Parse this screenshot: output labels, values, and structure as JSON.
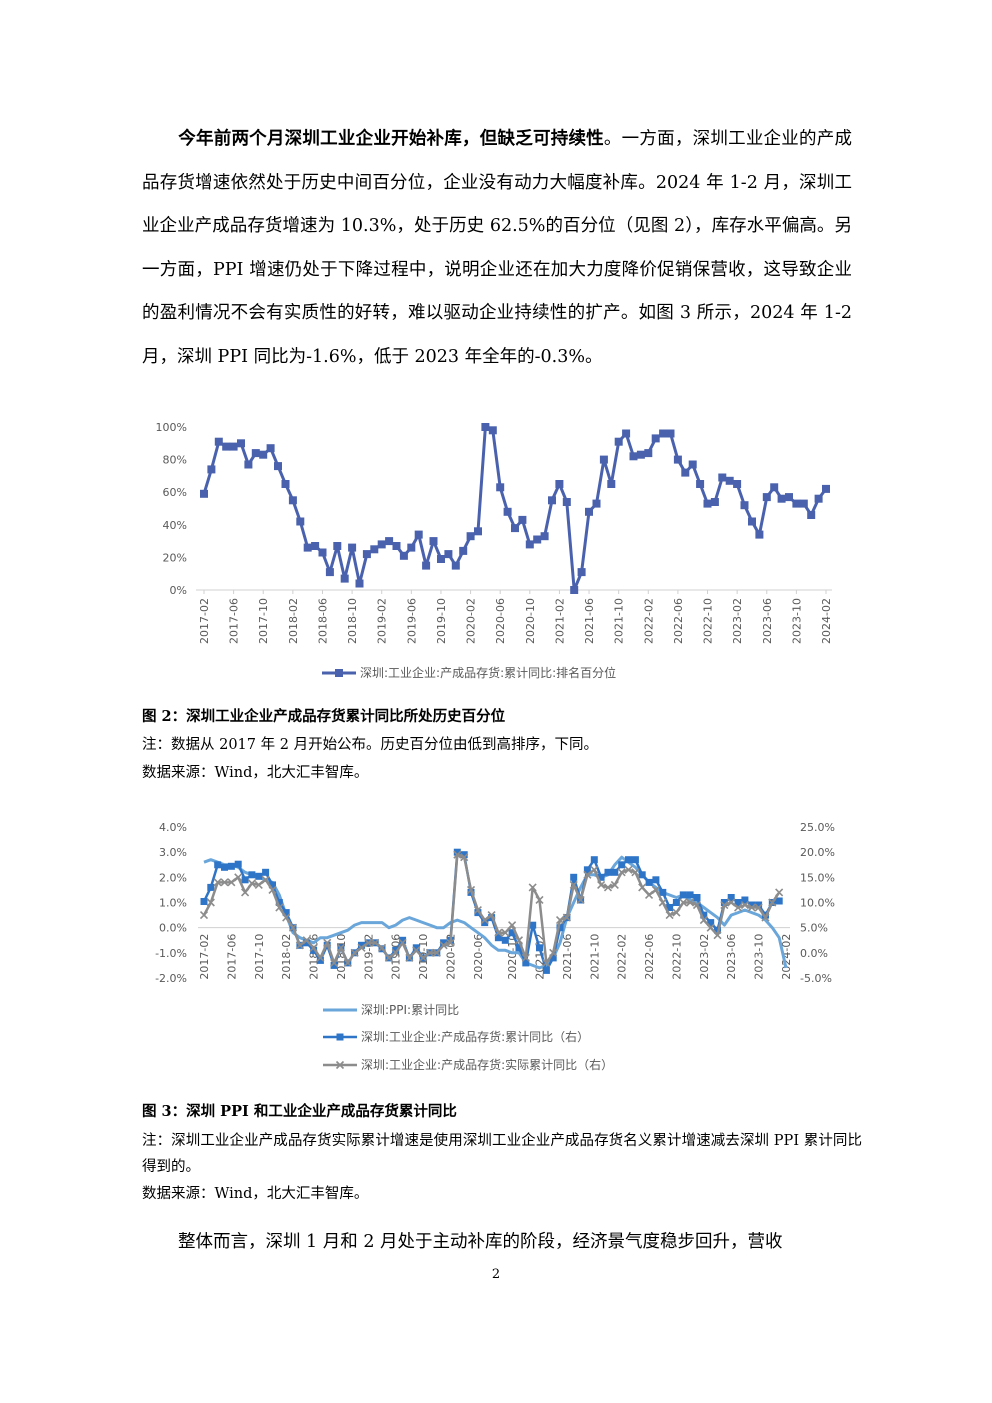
{
  "paragraph1": {
    "lead_bold": "今年前两个月深圳工业企业开始补库，但缺乏可持续性",
    "rest": "。一方面，深圳工业企业的产成品存货增速依然处于历史中间百分位，企业没有动力大幅度补库。2024 年 1-2 月，深圳工业企业产成品存货增速为 10.3%，处于历史 62.5%的百分位（见图 2），库存水平偏高。另一方面，PPI 增速仍处于下降过程中，说明企业还在加大力度降价促销保营收，这导致企业的盈利情况不会有实质性的好转，难以驱动企业持续性的扩产。如图 3 所示，2024 年 1-2 月，深圳 PPI 同比为-1.6%，低于 2023 年全年的-0.3%。"
  },
  "figure2": {
    "caption": "图 2：深圳工业企业产成品存货累计同比所处历史百分位",
    "note": "注：数据从 2017 年 2 月开始公布。历史百分位由低到高排序，下同。",
    "source": "数据来源：Wind，北大汇丰智库。"
  },
  "figure3": {
    "caption": "图 3：深圳 PPI 和工业企业产成品存货累计同比",
    "note": "注：深圳工业企业产成品存货实际累计增速是使用深圳工业企业产成品存货名义累计增速减去深圳 PPI 累计同比得到的。",
    "source": "数据来源：Wind，北大汇丰智库。"
  },
  "paragraph2": "整体而言，深圳 1 月和 2 月处于主动补库的阶段，经济景气度稳步回升，营收",
  "page_number": "2",
  "chart_data": [
    {
      "type": "line",
      "x_tick_labels": [
        "2017-02",
        "2017-06",
        "2017-10",
        "2018-02",
        "2018-06",
        "2018-10",
        "2019-02",
        "2019-06",
        "2019-10",
        "2020-02",
        "2020-06",
        "2020-10",
        "2021-02",
        "2021-06",
        "2021-10",
        "2022-02",
        "2022-06",
        "2022-10",
        "2023-02",
        "2023-06",
        "2023-10",
        "2024-02"
      ],
      "y_tick_labels": [
        "0%",
        "20%",
        "40%",
        "60%",
        "80%",
        "100%"
      ],
      "ylim": [
        0,
        100
      ],
      "grid": false,
      "legend_position": "bottom",
      "colors": {
        "series": "#4a62ad"
      },
      "series": [
        {
          "name": "深圳:工业企业:产成品存货:累计同比:排名百分位",
          "values": [
            59,
            74,
            91,
            88,
            88,
            90,
            77,
            84,
            83,
            87,
            76,
            65,
            55,
            42,
            26,
            27,
            23,
            11,
            27,
            7,
            26,
            4,
            22,
            25,
            28,
            30,
            27,
            21,
            26,
            34,
            15,
            30,
            19,
            22,
            15,
            24,
            33,
            36,
            100,
            98,
            63,
            48,
            38,
            43,
            28,
            31,
            33,
            55,
            65,
            54,
            0,
            11,
            48,
            53,
            80,
            65,
            91,
            96,
            82,
            83,
            84,
            93,
            96,
            96,
            80,
            72,
            77,
            65,
            53,
            54,
            69,
            67,
            65,
            52,
            42,
            34,
            57,
            63,
            56,
            57,
            53,
            53,
            46,
            56,
            62
          ]
        }
      ]
    },
    {
      "type": "line",
      "x_tick_labels": [
        "2017-02",
        "2017-06",
        "2017-10",
        "2018-02",
        "2018-06",
        "2018-10",
        "2019-02",
        "2019-06",
        "2019-10",
        "2020-02",
        "2020-06",
        "2020-10",
        "2021-02",
        "2021-06",
        "2021-10",
        "2022-02",
        "2022-06",
        "2022-10",
        "2023-02",
        "2023-06",
        "2023-10",
        "2024-02"
      ],
      "y_left_tick_labels": [
        "-2.0%",
        "-1.0%",
        "0.0%",
        "1.0%",
        "2.0%",
        "3.0%",
        "4.0%"
      ],
      "y_right_tick_labels": [
        "-5.0%",
        "0.0%",
        "5.0%",
        "10.0%",
        "15.0%",
        "20.0%",
        "25.0%"
      ],
      "ylim_left": [
        -2,
        4
      ],
      "ylim_right": [
        -5,
        25
      ],
      "grid": false,
      "legend_position": "bottom",
      "colors": {
        "ppi": "#6aa6d9",
        "nominal": "#2e75c8",
        "real": "#8c8c8c"
      },
      "series": [
        {
          "name": "深圳:PPI:累计同比",
          "axis": "left",
          "values": [
            2.6,
            2.7,
            2.6,
            2.5,
            2.5,
            2.4,
            2.2,
            2.1,
            2.0,
            1.9,
            1.8,
            1.3,
            0.5,
            -0.2,
            -0.4,
            -0.5,
            -0.6,
            -0.4,
            -0.4,
            -0.3,
            -0.2,
            -0.1,
            0.1,
            0.2,
            0.2,
            0.2,
            0.2,
            0.0,
            0.1,
            0.3,
            0.4,
            0.3,
            0.2,
            0.1,
            0.0,
            0.0,
            0.2,
            0.3,
            0.2,
            0.0,
            -0.2,
            -0.4,
            -0.7,
            -0.9,
            -0.9,
            -1.0,
            -1.0,
            -1.4,
            -1.5,
            -1.6,
            -1.5,
            -1.2,
            -0.6,
            0.4,
            1.0,
            1.6,
            2.1,
            2.1,
            2.0,
            2.1,
            2.5,
            2.8,
            2.6,
            2.4,
            2.1,
            1.8,
            1.6,
            1.4,
            1.3,
            1.2,
            1.3,
            1.1,
            1.0,
            0.8,
            0.6,
            0.4,
            0.1,
            0.5,
            0.6,
            0.7,
            0.6,
            0.5,
            0.3,
            0.0,
            -0.4,
            -1.6
          ]
        },
        {
          "name": "深圳:工业企业:产成品存货:累计同比（右）",
          "axis": "right",
          "values": [
            10.2,
            13.0,
            17.5,
            17.0,
            17.2,
            17.6,
            14.5,
            15.5,
            15.2,
            16.0,
            13.5,
            10.0,
            8.0,
            5.0,
            1.5,
            2.0,
            0.5,
            -1.5,
            1.5,
            -2.5,
            1.0,
            -2.0,
            0.0,
            1.5,
            2.0,
            2.0,
            0.8,
            -1.0,
            0.5,
            2.5,
            -1.0,
            1.0,
            -1.0,
            0.0,
            0.0,
            2.0,
            2.5,
            20.0,
            19.5,
            12.0,
            8.0,
            6.0,
            7.0,
            3.0,
            2.5,
            4.0,
            1.0,
            -2.0,
            5.5,
            1.0,
            -3.5,
            -1.0,
            5.0,
            7.0,
            15.0,
            10.5,
            16.5,
            18.5,
            15.0,
            16.0,
            16.0,
            17.5,
            18.5,
            18.5,
            15.5,
            14.0,
            14.5,
            12.0,
            9.0,
            10.0,
            11.5,
            11.5,
            11.0,
            7.5,
            6.0,
            4.5,
            10.0,
            11.0,
            10.0,
            10.5,
            9.5,
            9.5,
            7.5,
            10.0,
            10.3
          ]
        },
        {
          "name": "深圳:工业企业:产成品存货:实际累计同比（右）",
          "axis": "right",
          "values": [
            7.5,
            10.0,
            14.0,
            14.0,
            14.0,
            15.0,
            12.0,
            13.8,
            13.5,
            14.5,
            12.5,
            9.0,
            7.0,
            5.0,
            1.5,
            2.5,
            1.0,
            -1.0,
            2.0,
            -2.0,
            1.0,
            -2.0,
            0.0,
            1.0,
            2.0,
            2.0,
            1.0,
            -1.0,
            0.0,
            2.0,
            -1.0,
            0.5,
            -1.0,
            0.0,
            0.0,
            1.5,
            2.0,
            19.5,
            19.0,
            12.5,
            8.5,
            6.5,
            7.5,
            4.0,
            4.0,
            5.5,
            2.5,
            -1.0,
            13.0,
            10.5,
            -2.0,
            0.0,
            6.5,
            7.0,
            13.5,
            10.5,
            15.5,
            16.5,
            13.5,
            13.0,
            13.5,
            16.0,
            16.5,
            16.0,
            13.0,
            11.5,
            12.5,
            10.0,
            7.5,
            8.0,
            10.0,
            10.0,
            9.5,
            6.5,
            5.0,
            3.5,
            9.5,
            10.0,
            9.0,
            9.5,
            9.0,
            9.0,
            7.0,
            10.0,
            12.0
          ]
        }
      ]
    }
  ]
}
